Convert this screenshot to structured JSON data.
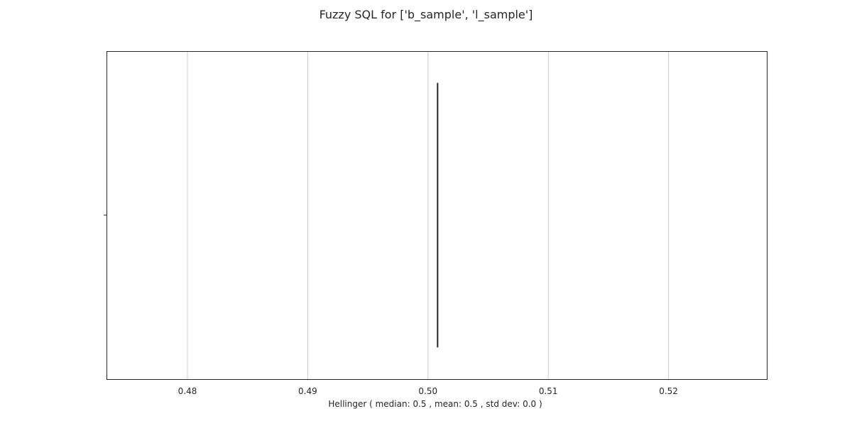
{
  "chart_data": {
    "type": "box",
    "title": "Fuzzy SQL for ['b_sample', 'l_sample']",
    "xlabel": "Hellinger ( median: 0.5 , mean: 0.5 , std dev: 0.0 )",
    "ylabel": "",
    "xlim": [
      0.4733,
      0.5282
    ],
    "xticks": [
      0.48,
      0.49,
      0.5,
      0.51,
      0.52
    ],
    "xtick_labels": [
      "0.48",
      "0.49",
      "0.50",
      "0.51",
      "0.52"
    ],
    "grid": "x-major",
    "series": [
      {
        "min": 0.5008,
        "q1": 0.5008,
        "median": 0.5008,
        "q3": 0.5008,
        "max": 0.5008
      }
    ]
  },
  "colors": {
    "grid": "#cccccc",
    "frame": "#262626",
    "box": "#262626"
  }
}
